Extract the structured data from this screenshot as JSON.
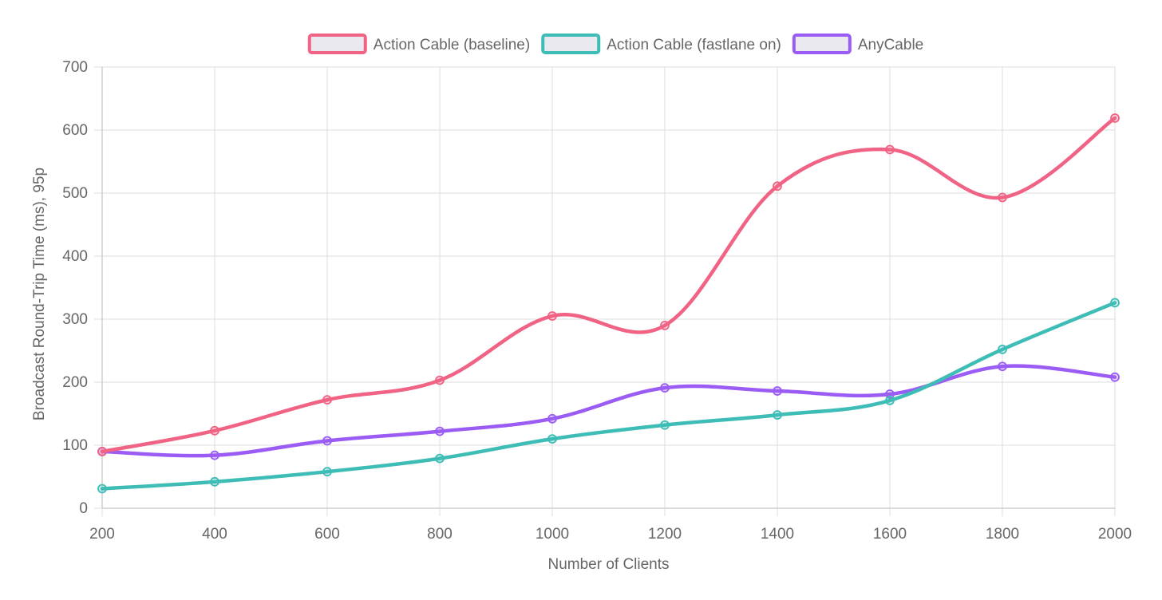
{
  "chart_data": {
    "type": "line",
    "xlabel": "Number of Clients",
    "ylabel": "Broadcast Round-Trip Time (ms), 95p",
    "x": [
      200,
      400,
      600,
      800,
      1000,
      1200,
      1400,
      1600,
      1800,
      2000
    ],
    "ylim": [
      0,
      700
    ],
    "yticks": [
      0,
      100,
      200,
      300,
      400,
      500,
      600,
      700
    ],
    "grid": true,
    "legend_position": "top-center",
    "series": [
      {
        "name": "Action Cable (baseline)",
        "color": "#f06384",
        "values": [
          90,
          123,
          172,
          203,
          305,
          290,
          511,
          569,
          493,
          619
        ]
      },
      {
        "name": "Action Cable (fastlane on)",
        "color": "#3ebcb6",
        "values": [
          31,
          42,
          58,
          79,
          110,
          132,
          148,
          171,
          252,
          326
        ]
      },
      {
        "name": "AnyCable",
        "color": "#9a5cf4",
        "values": [
          90,
          84,
          107,
          122,
          142,
          191,
          186,
          181,
          225,
          208
        ]
      }
    ]
  }
}
